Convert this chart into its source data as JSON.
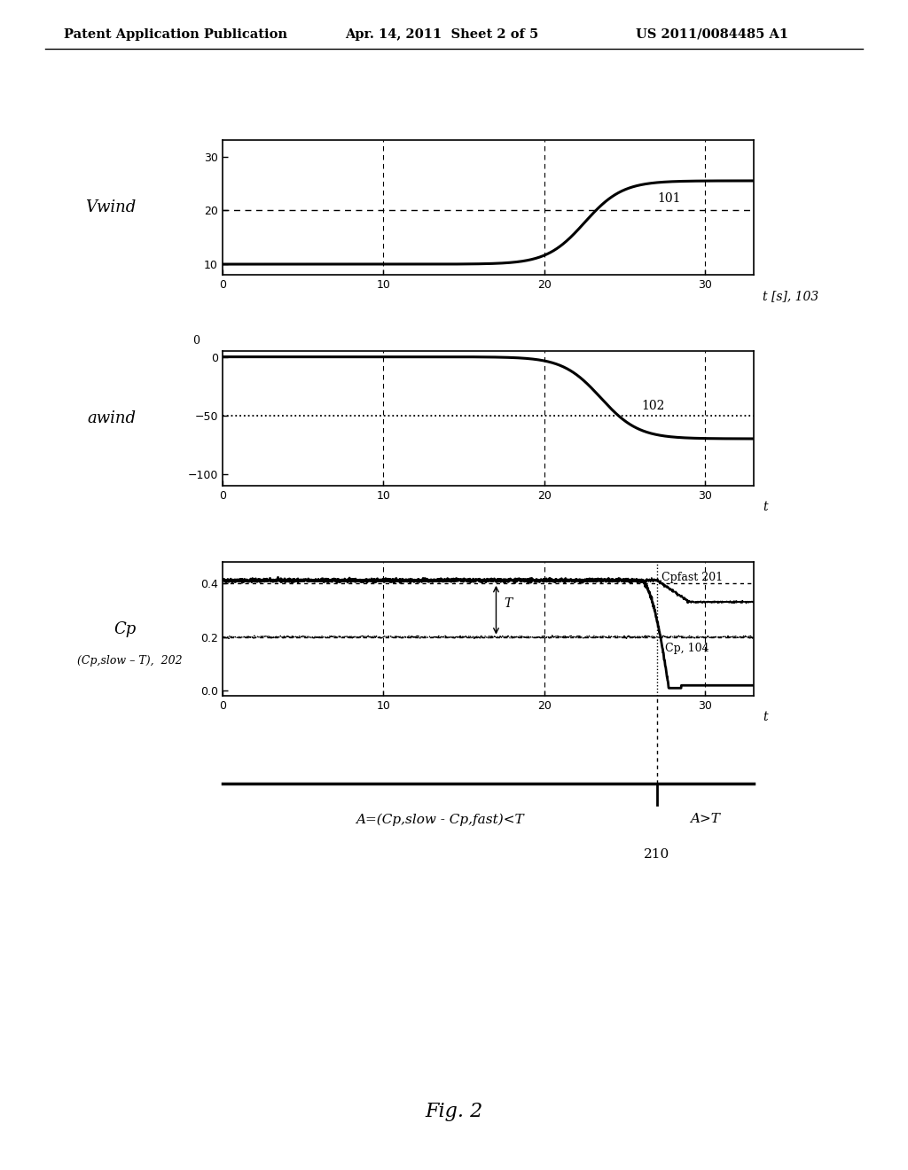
{
  "header_left": "Patent Application Publication",
  "header_mid": "Apr. 14, 2011  Sheet 2 of 5",
  "header_right": "US 2011/0084485 A1",
  "fig_caption": "Fig. 2",
  "plot1_ylabel": "Vwind",
  "plot1_xlabel": "t [s], 103",
  "plot1_ylim": [
    8,
    33
  ],
  "plot1_yticks": [
    10,
    20,
    30
  ],
  "plot1_xlim": [
    0,
    33
  ],
  "plot1_xticks": [
    0,
    10,
    20,
    30
  ],
  "plot1_label": "101",
  "plot2_ylabel": "awind",
  "plot2_xlabel": "t",
  "plot2_ylim": [
    -110,
    5
  ],
  "plot2_yticks": [
    0,
    -50,
    -100
  ],
  "plot2_xlim": [
    0,
    33
  ],
  "plot2_xticks": [
    0,
    10,
    20,
    30
  ],
  "plot2_label": "102",
  "plot3_ylabel": "Cp",
  "plot3_xlabel": "t",
  "plot3_ylim": [
    -0.02,
    0.48
  ],
  "plot3_yticks": [
    0,
    0.2,
    0.4
  ],
  "plot3_xlim": [
    0,
    33
  ],
  "plot3_xticks": [
    0,
    10,
    20,
    30
  ],
  "plot3_label_cpfast": "Cpfast 201",
  "plot3_label_cpslow": "(Cp,slow – T),  202",
  "plot3_label_cp": "Cp, 104",
  "timeline_left": "A=(Cp,slow - Cp,fast)<T",
  "timeline_right": "A>T",
  "timeline_label": "210",
  "bg_color": "#b8b8b8",
  "split_t": 27.0,
  "vwind_t0": 22.5,
  "awind_t0": 23.5
}
